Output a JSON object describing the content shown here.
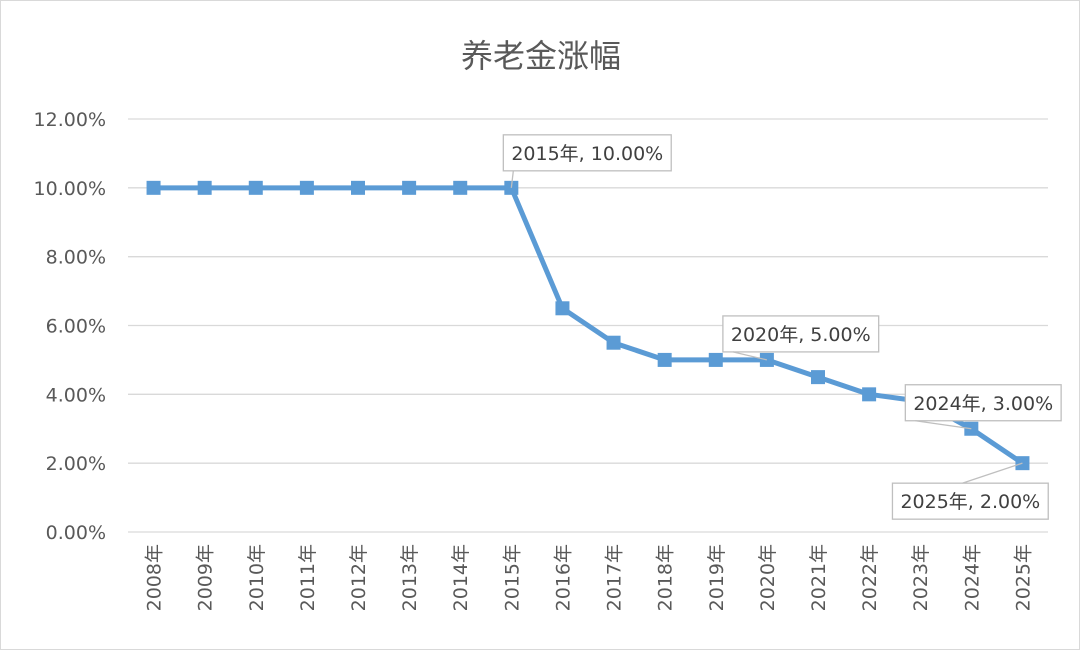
{
  "chart_data": {
    "type": "line",
    "title": "养老金涨幅",
    "xlabel": "",
    "ylabel": "",
    "categories": [
      "2008年",
      "2009年",
      "2010年",
      "2011年",
      "2012年",
      "2013年",
      "2014年",
      "2015年",
      "2016年",
      "2017年",
      "2018年",
      "2019年",
      "2020年",
      "2021年",
      "2022年",
      "2023年",
      "2024年",
      "2025年"
    ],
    "series": [
      {
        "values": [
          10.0,
          10.0,
          10.0,
          10.0,
          10.0,
          10.0,
          10.0,
          10.0,
          6.5,
          5.5,
          5.0,
          5.0,
          5.0,
          4.5,
          4.0,
          3.8,
          3.0,
          2.0
        ]
      }
    ],
    "ylim": [
      0,
      12
    ],
    "yticks": [
      "0.00%",
      "2.00%",
      "4.00%",
      "6.00%",
      "8.00%",
      "10.00%",
      "12.00%"
    ],
    "grid": true,
    "legend": "none",
    "color": "#5b9bd5",
    "annotations": [
      {
        "index": 7,
        "label": "2015年, 10.00%"
      },
      {
        "index": 12,
        "label": "2020年, 5.00%"
      },
      {
        "index": 16,
        "label": "2024年, 3.00%"
      },
      {
        "index": 17,
        "label": "2025年, 2.00%"
      }
    ]
  }
}
